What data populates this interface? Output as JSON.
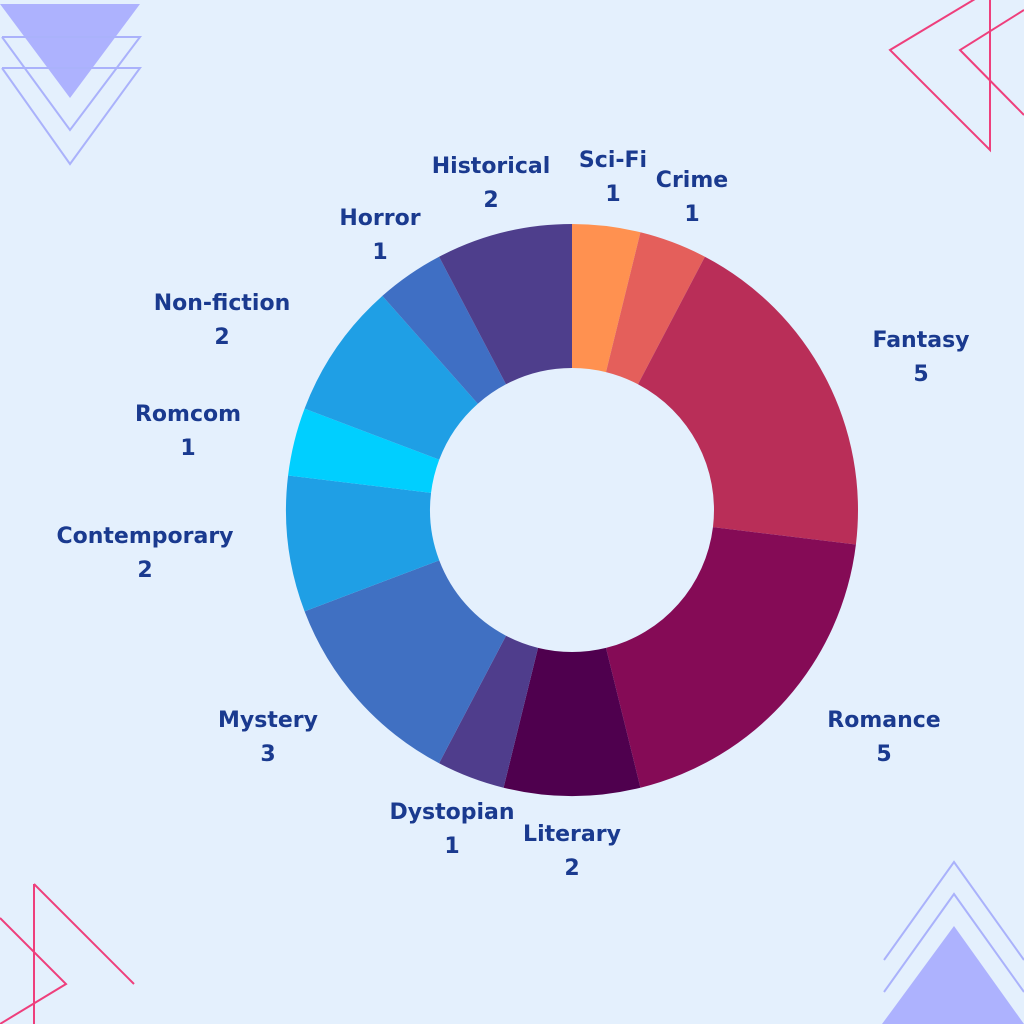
{
  "chart_data": {
    "type": "pie",
    "variant": "donut",
    "title": "",
    "categories": [
      "Sci-Fi",
      "Crime",
      "Fantasy",
      "Romance",
      "Literary",
      "Dystopian",
      "Mystery",
      "Contemporary",
      "Romcom",
      "Non-fiction",
      "Horror",
      "Historical"
    ],
    "values": [
      1,
      1,
      5,
      5,
      2,
      1,
      3,
      2,
      1,
      2,
      1,
      2
    ],
    "colors": [
      "#ff9150",
      "#e45f5b",
      "#b92e58",
      "#850b56",
      "#4f004e",
      "#4f3d8c",
      "#4070c2",
      "#1f9fe5",
      "#00cfff",
      "#1f9fe5",
      "#3f6fc4",
      "#4e3e8c"
    ],
    "legend": "none",
    "data_labels": true
  },
  "decorations": {
    "triangle_fill_color": "#adb2fe",
    "triangle_line_color": "#aab2fb",
    "pink_line_color": "#ee3f7c"
  }
}
